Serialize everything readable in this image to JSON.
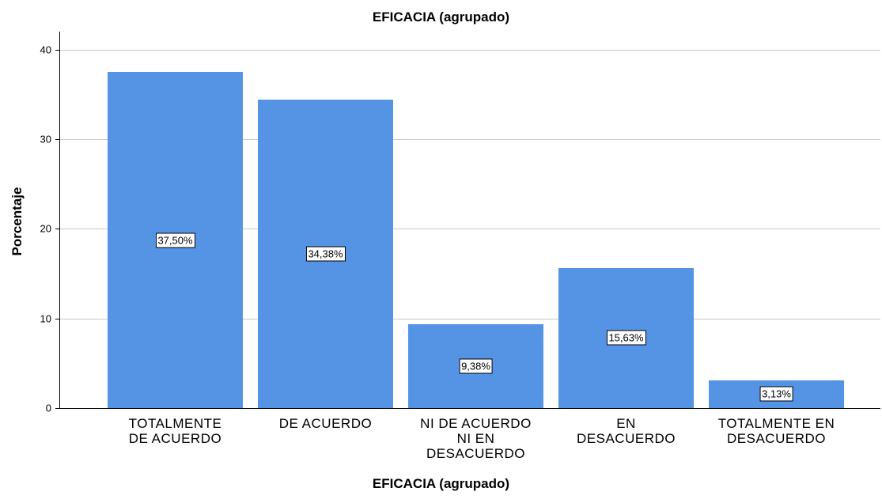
{
  "chart_data": {
    "type": "bar",
    "title": "EFICACIA (agrupado)",
    "x_label": "EFICACIA (agrupado)",
    "y_label": "Porcentaje",
    "categories": [
      "TOTALMENTE\nDE ACUERDO",
      "DE ACUERDO",
      "NI DE ACUERDO\nNI EN\nDESACUERDO",
      "EN\nDESACUERDO",
      "TOTALMENTE EN\nDESACUERDO"
    ],
    "values": [
      37.5,
      34.38,
      9.38,
      15.63,
      3.13
    ],
    "value_labels": [
      "37,50%",
      "34,38%",
      "9,38%",
      "15,63%",
      "3,13%"
    ],
    "color": "#5594e4",
    "ylim": [
      0,
      42
    ],
    "yticks": [
      0,
      10,
      20,
      30,
      40
    ],
    "grid": true
  }
}
